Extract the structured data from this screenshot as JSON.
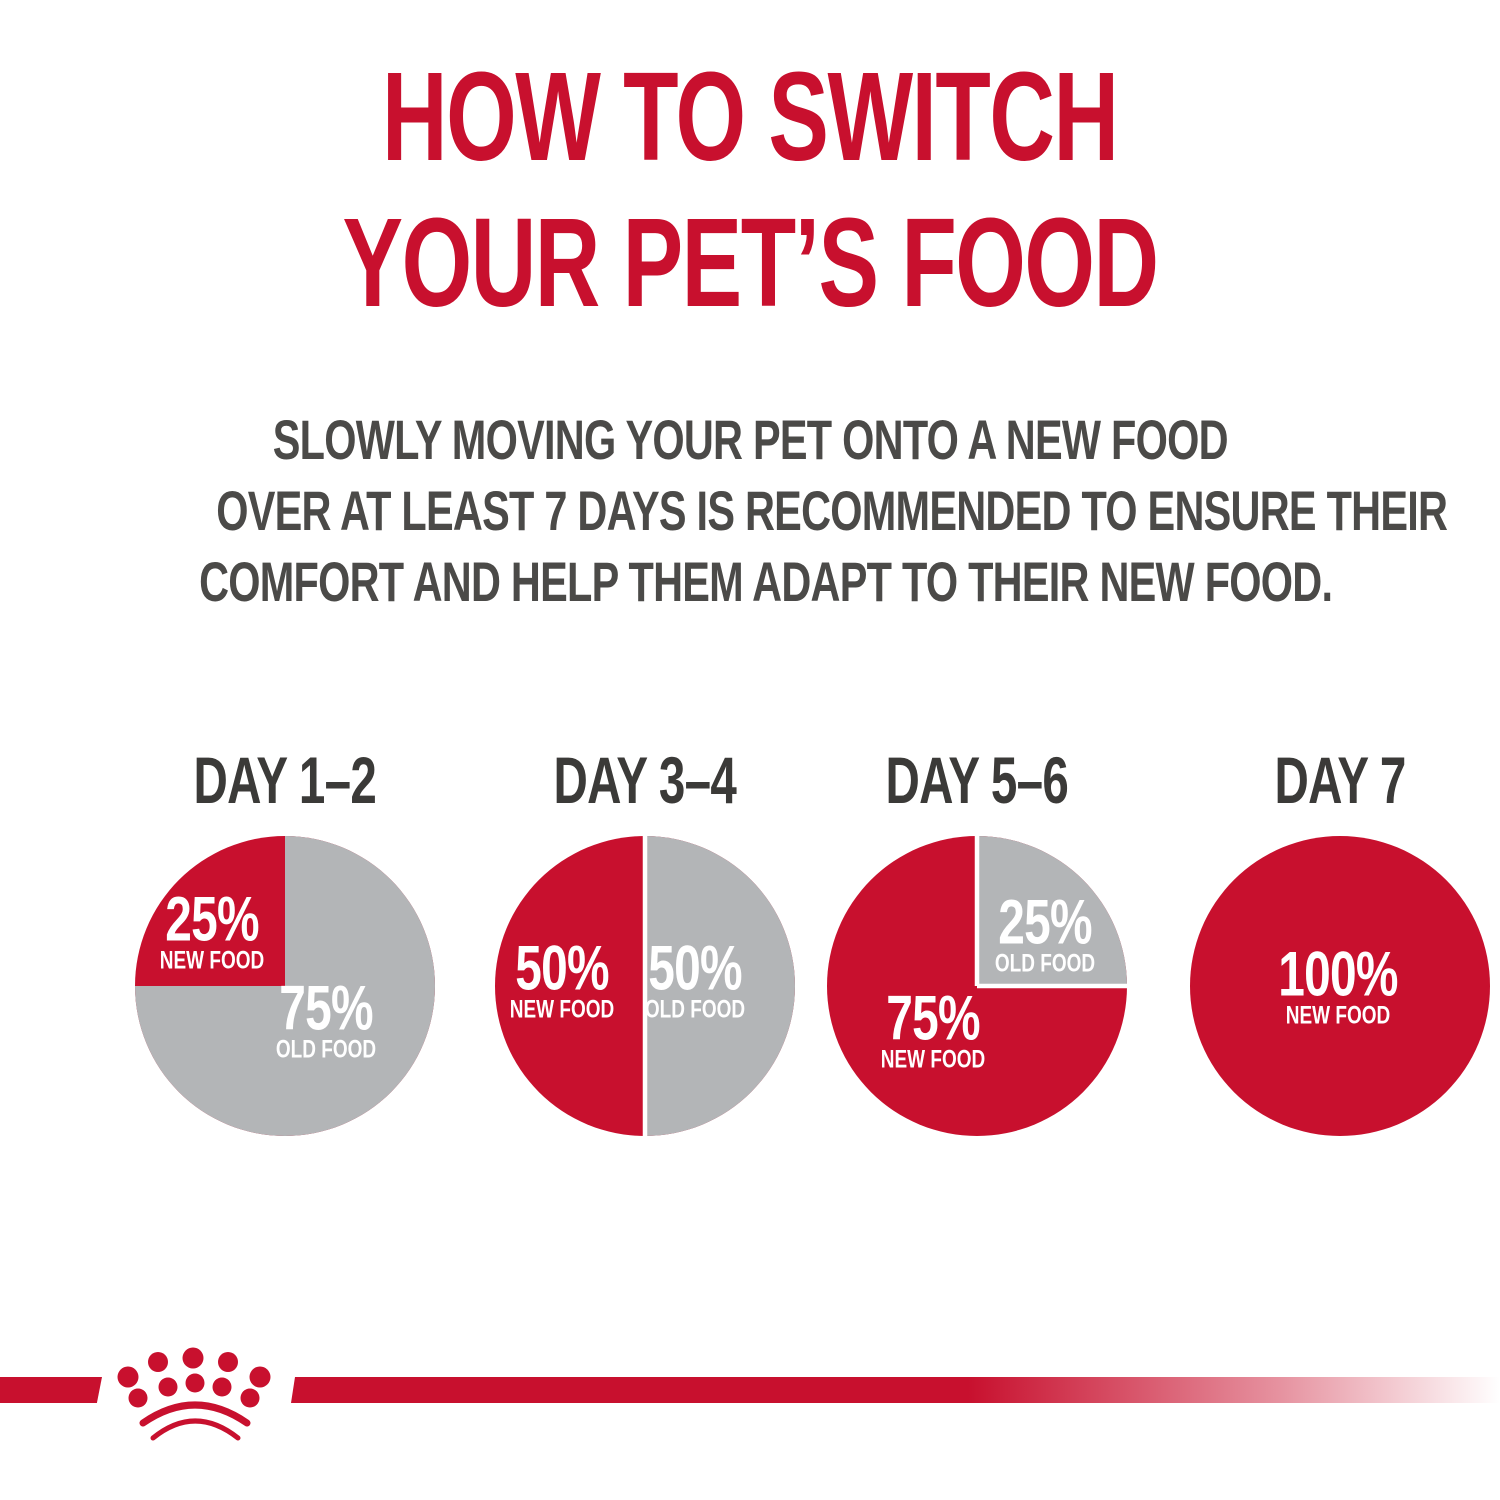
{
  "colors": {
    "red": "#c8102e",
    "gray": "#b3b5b7",
    "heading_dark": "#3b3a38",
    "body_text": "#4b4a48",
    "label_white": "#ffffff"
  },
  "title": {
    "line1": "HOW TO SWITCH",
    "line2": "YOUR PET’S FOOD"
  },
  "subtitle": {
    "line1": "SLOWLY MOVING YOUR PET ONTO A NEW FOOD",
    "line2": "OVER AT LEAST 7 DAYS IS RECOMMENDED TO ENSURE THEIR",
    "line3": "COMFORT AND HELP THEM ADAPT TO THEIR NEW FOOD."
  },
  "footer": {
    "brand_icon": "royal-canin-crown"
  },
  "chart_data": [
    {
      "type": "pie",
      "title": "DAY 1–2",
      "new_pct": 25,
      "old_pct": 75,
      "white_divider": false,
      "red_position": "top-left-quarter",
      "slices": [
        {
          "label": "NEW FOOD",
          "pct_text": "25%",
          "value": 25,
          "color": "#c8102e"
        },
        {
          "label": "OLD FOOD",
          "pct_text": "75%",
          "value": 75,
          "color": "#b3b5b7"
        }
      ]
    },
    {
      "type": "pie",
      "title": "DAY 3–4",
      "new_pct": 50,
      "old_pct": 50,
      "white_divider": true,
      "red_position": "left-half",
      "slices": [
        {
          "label": "NEW FOOD",
          "pct_text": "50%",
          "value": 50,
          "color": "#c8102e"
        },
        {
          "label": "OLD FOOD",
          "pct_text": "50%",
          "value": 50,
          "color": "#b3b5b7"
        }
      ]
    },
    {
      "type": "pie",
      "title": "DAY 5–6",
      "new_pct": 75,
      "old_pct": 25,
      "white_divider": true,
      "red_position": "all-but-top-right-quarter",
      "slices": [
        {
          "label": "OLD FOOD",
          "pct_text": "25%",
          "value": 25,
          "color": "#b3b5b7"
        },
        {
          "label": "NEW FOOD",
          "pct_text": "75%",
          "value": 75,
          "color": "#c8102e"
        }
      ]
    },
    {
      "type": "pie",
      "title": "DAY 7",
      "new_pct": 100,
      "old_pct": 0,
      "white_divider": false,
      "red_position": "full",
      "slices": [
        {
          "label": "NEW FOOD",
          "pct_text": "100%",
          "value": 100,
          "color": "#c8102e"
        }
      ]
    }
  ]
}
